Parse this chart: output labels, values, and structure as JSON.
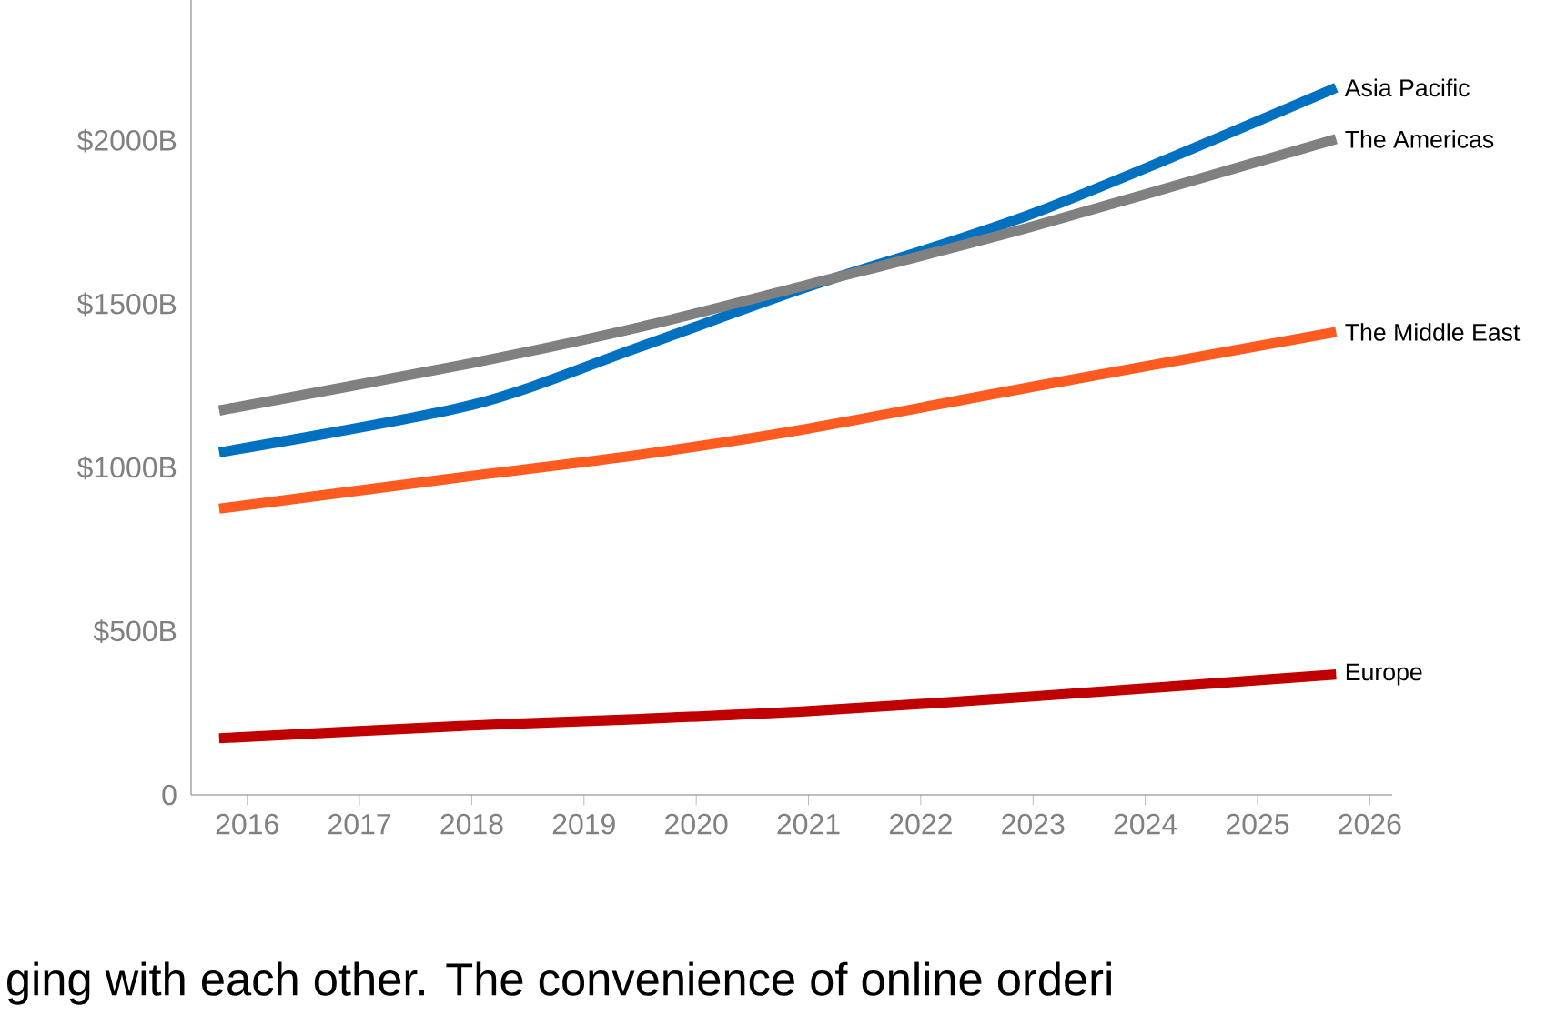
{
  "chart_data": {
    "type": "line",
    "xlim": [
      2015.5,
      2026.2
    ],
    "ylim": [
      0,
      2430
    ],
    "xticks": [
      2016,
      2017,
      2018,
      2019,
      2020,
      2021,
      2022,
      2023,
      2024,
      2025,
      2026
    ],
    "yticks": [
      0,
      {
        "value": 500,
        "label": "$500B"
      },
      {
        "value": 1000,
        "label": "$1000B"
      },
      {
        "value": 1500,
        "label": "$1500B"
      },
      {
        "value": 2000,
        "label": "$2000B"
      }
    ],
    "x": [
      2015.75,
      2018,
      2019.5,
      2021,
      2023,
      2025.7
    ],
    "series": [
      {
        "name": "Asia Pacific",
        "color": "#0070c0",
        "values": [
          1047,
          1192,
          1370,
          1554,
          1777,
          2162
        ]
      },
      {
        "name": "The Americas",
        "color": "#808080",
        "values": [
          1175,
          1320,
          1430,
          1560,
          1738,
          2005
        ]
      },
      {
        "name": "The Middle East",
        "color": "#ff5a1f",
        "values": [
          875,
          975,
          1040,
          1120,
          1248,
          1415
        ]
      },
      {
        "name": "Europe",
        "color": "#c00000",
        "values": [
          173,
          212,
          232,
          256,
          301,
          368
        ]
      }
    ],
    "annotations": [
      "ging with each other. The convenience of online orderi"
    ]
  }
}
